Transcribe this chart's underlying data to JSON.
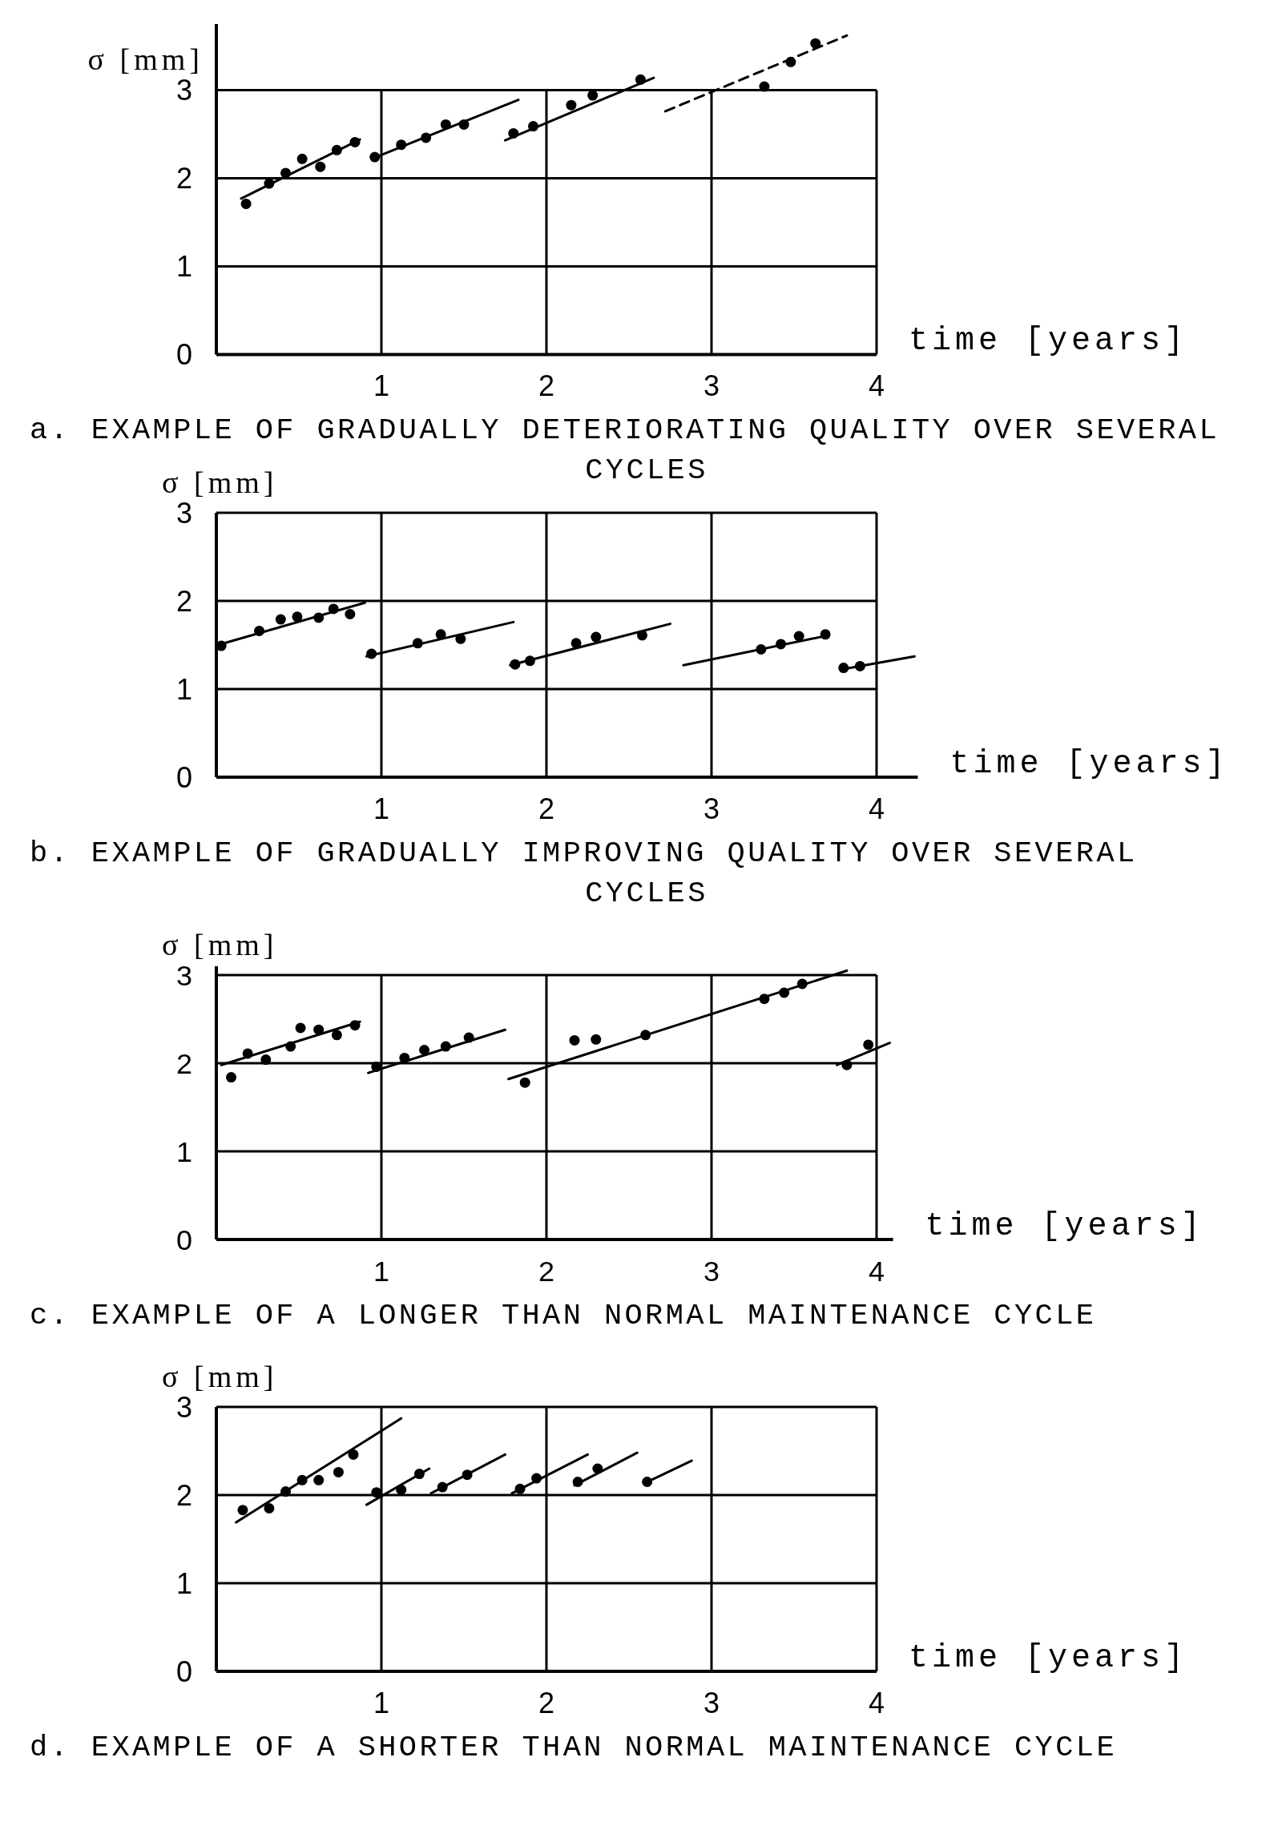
{
  "chart_data": [
    {
      "type": "scatter",
      "title": "a. EXAMPLE OF GRADUALLY DETERIORATING QUALITY OVER SEVERAL CYCLES",
      "xlabel": "time [years]",
      "ylabel": "σ [mm]",
      "xlim": [
        0,
        4
      ],
      "ylim": [
        0,
        3.75
      ],
      "xticks": [
        1,
        2,
        3,
        4
      ],
      "yticks": [
        0,
        1,
        2,
        3
      ],
      "grid": true,
      "line_style": "solid",
      "series": [
        {
          "marker": "circle",
          "color": "#000000",
          "x": [
            0.18,
            0.32,
            0.42,
            0.52,
            0.63,
            0.73,
            0.84,
            0.96,
            1.12,
            1.27,
            1.39,
            1.5,
            1.8,
            1.92,
            2.15,
            2.28,
            2.57,
            3.32,
            3.48,
            3.63
          ],
          "values": [
            1.71,
            1.94,
            2.06,
            2.22,
            2.13,
            2.32,
            2.41,
            2.24,
            2.38,
            2.46,
            2.61,
            2.61,
            2.51,
            2.59,
            2.83,
            2.94,
            3.12,
            3.04,
            3.32,
            3.53
          ]
        },
        {
          "type": "line",
          "color": "#000000",
          "x": [
            0.15,
            0.87
          ],
          "values": [
            1.77,
            2.44
          ]
        },
        {
          "type": "line",
          "color": "#000000",
          "x": [
            0.94,
            1.83
          ],
          "values": [
            2.22,
            2.89
          ]
        },
        {
          "type": "line",
          "color": "#000000",
          "x": [
            1.75,
            2.65
          ],
          "values": [
            2.43,
            3.14
          ]
        },
        {
          "type": "line",
          "color": "#000000",
          "line_style": "dashed",
          "x": [
            2.72,
            3.82
          ],
          "values": [
            2.76,
            3.62
          ]
        }
      ]
    },
    {
      "type": "scatter",
      "title": "b. EXAMPLE OF GRADUALLY IMPROVING QUALITY OVER SEVERAL CYCLES",
      "xlabel": "time [years]",
      "ylabel": "σ [mm]",
      "xlim": [
        0,
        4.25
      ],
      "ylim": [
        0,
        3
      ],
      "xticks": [
        1,
        2,
        3,
        4
      ],
      "yticks": [
        0,
        1,
        2,
        3
      ],
      "grid": true,
      "line_style": "solid",
      "series": [
        {
          "marker": "circle",
          "color": "#000000",
          "x": [
            0.03,
            0.26,
            0.39,
            0.49,
            0.62,
            0.71,
            0.81,
            0.94,
            1.22,
            1.36,
            1.48,
            1.81,
            1.9,
            2.18,
            2.3,
            2.58,
            3.3,
            3.42,
            3.53,
            3.69,
            3.8,
            3.9
          ],
          "values": [
            1.49,
            1.66,
            1.79,
            1.82,
            1.81,
            1.91,
            1.85,
            1.4,
            1.52,
            1.62,
            1.57,
            1.28,
            1.32,
            1.52,
            1.59,
            1.61,
            1.45,
            1.51,
            1.6,
            1.62,
            1.24,
            1.26
          ]
        },
        {
          "type": "line",
          "color": "#000000",
          "x": [
            0.01,
            0.9
          ],
          "values": [
            1.5,
            1.98
          ]
        },
        {
          "type": "line",
          "color": "#000000",
          "x": [
            0.91,
            1.8
          ],
          "values": [
            1.37,
            1.76
          ]
        },
        {
          "type": "line",
          "color": "#000000",
          "x": [
            1.78,
            2.75
          ],
          "values": [
            1.27,
            1.74
          ]
        },
        {
          "type": "line",
          "color": "#000000",
          "x": [
            2.83,
            3.71
          ],
          "values": [
            1.27,
            1.61
          ]
        },
        {
          "type": "line",
          "color": "#000000",
          "x": [
            3.78,
            4.23
          ],
          "values": [
            1.22,
            1.37
          ]
        }
      ]
    },
    {
      "type": "scatter",
      "title": "c. EXAMPLE OF A LONGER THAN NORMAL MAINTENANCE CYCLE",
      "xlabel": "time [years]",
      "ylabel": "σ [mm]",
      "xlim": [
        0,
        4.1
      ],
      "ylim": [
        0,
        3.1
      ],
      "xticks": [
        1,
        2,
        3,
        4
      ],
      "yticks": [
        0,
        1,
        2,
        3
      ],
      "grid": true,
      "line_style": "solid",
      "series": [
        {
          "marker": "circle",
          "color": "#000000",
          "x": [
            0.09,
            0.19,
            0.3,
            0.45,
            0.51,
            0.62,
            0.73,
            0.84,
            0.97,
            1.14,
            1.26,
            1.39,
            1.53,
            1.87,
            2.17,
            2.3,
            2.6,
            3.32,
            3.44,
            3.55,
            3.82,
            3.95
          ],
          "values": [
            1.84,
            2.11,
            2.04,
            2.19,
            2.4,
            2.38,
            2.32,
            2.43,
            1.96,
            2.06,
            2.15,
            2.19,
            2.29,
            1.78,
            2.26,
            2.27,
            2.32,
            2.73,
            2.8,
            2.9,
            1.98,
            2.21
          ]
        },
        {
          "type": "line",
          "color": "#000000",
          "x": [
            0.03,
            0.87
          ],
          "values": [
            1.98,
            2.47
          ]
        },
        {
          "type": "line",
          "color": "#000000",
          "x": [
            0.92,
            1.75
          ],
          "values": [
            1.89,
            2.38
          ]
        },
        {
          "type": "line",
          "color": "#000000",
          "x": [
            1.77,
            3.82
          ],
          "values": [
            1.82,
            3.05
          ]
        },
        {
          "type": "line",
          "color": "#000000",
          "x": [
            3.76,
            4.08
          ],
          "values": [
            1.98,
            2.23
          ]
        }
      ]
    },
    {
      "type": "scatter",
      "title": "d. EXAMPLE OF A SHORTER THAN NORMAL MAINTENANCE CYCLE",
      "xlabel": "time [years]",
      "ylabel": "σ [mm]",
      "xlim": [
        0,
        4
      ],
      "ylim": [
        0,
        3
      ],
      "xticks": [
        1,
        2,
        3,
        4
      ],
      "yticks": [
        0,
        1,
        2,
        3
      ],
      "grid": true,
      "line_style": "solid",
      "series": [
        {
          "marker": "circle",
          "color": "#000000",
          "x": [
            0.16,
            0.32,
            0.42,
            0.52,
            0.62,
            0.74,
            0.83,
            0.97,
            1.12,
            1.23,
            1.37,
            1.52,
            1.84,
            1.94,
            2.19,
            2.31,
            2.61
          ],
          "values": [
            1.83,
            1.85,
            2.04,
            2.17,
            2.17,
            2.26,
            2.46,
            2.03,
            2.06,
            2.24,
            2.09,
            2.23,
            2.07,
            2.19,
            2.15,
            2.3,
            2.15
          ]
        },
        {
          "type": "line",
          "color": "#000000",
          "x": [
            0.12,
            1.12
          ],
          "values": [
            1.69,
            2.87
          ]
        },
        {
          "type": "line",
          "color": "#000000",
          "x": [
            0.91,
            1.29
          ],
          "values": [
            1.89,
            2.3
          ]
        },
        {
          "type": "line",
          "color": "#000000",
          "x": [
            1.3,
            1.75
          ],
          "values": [
            2.02,
            2.46
          ]
        },
        {
          "type": "line",
          "color": "#000000",
          "x": [
            1.79,
            2.25
          ],
          "values": [
            2.02,
            2.46
          ]
        },
        {
          "type": "line",
          "color": "#000000",
          "x": [
            2.17,
            2.55
          ],
          "values": [
            2.11,
            2.48
          ]
        },
        {
          "type": "line",
          "color": "#000000",
          "x": [
            2.59,
            2.88
          ],
          "values": [
            2.13,
            2.39
          ]
        }
      ]
    }
  ]
}
